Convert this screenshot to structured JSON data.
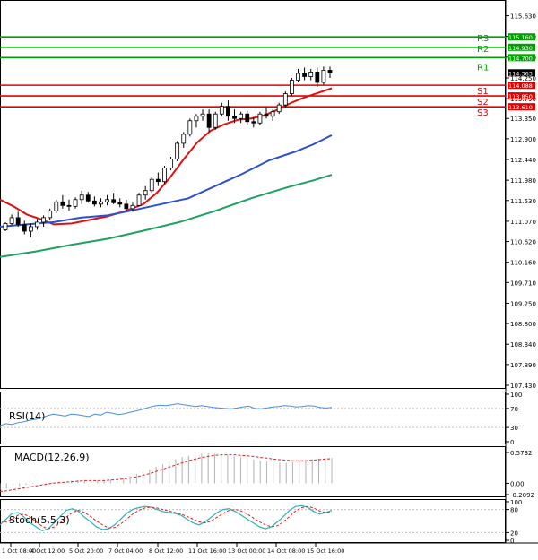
{
  "chart_data": {
    "type": "candlestick",
    "main_pane": {
      "y_ticks": [
        "115.630",
        "115.170",
        "114.710",
        "114.250",
        "113.790",
        "113.350",
        "112.900",
        "112.440",
        "111.980",
        "111.530",
        "111.070",
        "110.620",
        "110.160",
        "109.710",
        "109.250",
        "108.800",
        "108.340",
        "107.890",
        "107.430"
      ],
      "ylim": [
        107.43,
        115.86
      ],
      "levels": [
        {
          "name": "R3",
          "value": 115.16,
          "color": "#00a000"
        },
        {
          "name": "R2",
          "value": 114.93,
          "color": "#00a000"
        },
        {
          "name": "R1",
          "value": 114.7,
          "color": "#00a000"
        },
        {
          "name": "S1",
          "value": 114.088,
          "color": "#e00000"
        },
        {
          "name": "S2",
          "value": 113.85,
          "color": "#e00000"
        },
        {
          "name": "S3",
          "value": 113.61,
          "color": "#e00000"
        }
      ],
      "level_price_labels": [
        "115.160",
        "114.930",
        "114.700",
        "114.088",
        "113.850",
        "113.610"
      ],
      "current_price": "114.363",
      "moving_averages": [
        {
          "color": "#e01010",
          "points": [
            [
              0,
              111.55
            ],
            [
              15,
              111.4
            ],
            [
              30,
              111.22
            ],
            [
              45,
              111.12
            ],
            [
              60,
              111.0
            ],
            [
              80,
              111.02
            ],
            [
              100,
              111.1
            ],
            [
              120,
              111.18
            ],
            [
              140,
              111.3
            ],
            [
              160,
              111.45
            ],
            [
              175,
              111.7
            ],
            [
              190,
              112.05
            ],
            [
              205,
              112.45
            ],
            [
              220,
              112.82
            ],
            [
              235,
              113.08
            ],
            [
              250,
              113.22
            ],
            [
              265,
              113.32
            ],
            [
              280,
              113.35
            ],
            [
              295,
              113.42
            ],
            [
              310,
              113.55
            ],
            [
              325,
              113.7
            ],
            [
              340,
              113.82
            ],
            [
              355,
              113.92
            ],
            [
              370,
              114.02
            ]
          ]
        },
        {
          "color": "#2e4fd0",
          "points": [
            [
              0,
              110.95
            ],
            [
              30,
              111.0
            ],
            [
              60,
              111.05
            ],
            [
              90,
              111.15
            ],
            [
              120,
              111.2
            ],
            [
              150,
              111.32
            ],
            [
              180,
              111.45
            ],
            [
              210,
              111.58
            ],
            [
              240,
              111.85
            ],
            [
              270,
              112.12
            ],
            [
              300,
              112.42
            ],
            [
              330,
              112.62
            ],
            [
              350,
              112.78
            ],
            [
              370,
              112.98
            ]
          ]
        },
        {
          "color": "#20a060",
          "points": [
            [
              0,
              110.28
            ],
            [
              40,
              110.4
            ],
            [
              80,
              110.55
            ],
            [
              120,
              110.68
            ],
            [
              160,
              110.86
            ],
            [
              200,
              111.05
            ],
            [
              240,
              111.3
            ],
            [
              280,
              111.58
            ],
            [
              320,
              111.82
            ],
            [
              350,
              111.98
            ],
            [
              370,
              112.1
            ]
          ]
        }
      ],
      "candles": [
        [
          110.88,
          111.05,
          110.85,
          111.02
        ],
        [
          111.02,
          111.22,
          110.98,
          111.15
        ],
        [
          111.15,
          111.28,
          110.95,
          111.0
        ],
        [
          111.0,
          111.08,
          110.78,
          110.85
        ],
        [
          110.85,
          111.02,
          110.72,
          110.95
        ],
        [
          110.95,
          111.12,
          110.88,
          111.05
        ],
        [
          111.05,
          111.2,
          110.95,
          111.15
        ],
        [
          111.15,
          111.35,
          111.1,
          111.3
        ],
        [
          111.3,
          111.55,
          111.25,
          111.5
        ],
        [
          111.5,
          111.65,
          111.35,
          111.42
        ],
        [
          111.42,
          111.55,
          111.3,
          111.4
        ],
        [
          111.4,
          111.6,
          111.35,
          111.55
        ],
        [
          111.55,
          111.75,
          111.45,
          111.65
        ],
        [
          111.65,
          111.72,
          111.48,
          111.52
        ],
        [
          111.52,
          111.62,
          111.4,
          111.45
        ],
        [
          111.45,
          111.58,
          111.38,
          111.5
        ],
        [
          111.5,
          111.65,
          111.42,
          111.55
        ],
        [
          111.55,
          111.7,
          111.45,
          111.48
        ],
        [
          111.48,
          111.58,
          111.38,
          111.45
        ],
        [
          111.45,
          111.55,
          111.3,
          111.35
        ],
        [
          111.35,
          111.48,
          111.28,
          111.42
        ],
        [
          111.42,
          111.7,
          111.4,
          111.65
        ],
        [
          111.65,
          111.85,
          111.55,
          111.75
        ],
        [
          111.75,
          112.05,
          111.7,
          112.0
        ],
        [
          112.0,
          112.15,
          111.85,
          111.95
        ],
        [
          111.95,
          112.3,
          111.9,
          112.25
        ],
        [
          112.25,
          112.5,
          112.2,
          112.45
        ],
        [
          112.45,
          112.85,
          112.4,
          112.8
        ],
        [
          112.8,
          113.05,
          112.7,
          113.0
        ],
        [
          113.0,
          113.35,
          112.95,
          113.3
        ],
        [
          113.3,
          113.45,
          113.15,
          113.4
        ],
        [
          113.4,
          113.55,
          113.3,
          113.45
        ],
        [
          113.45,
          113.55,
          113.05,
          113.15
        ],
        [
          113.15,
          113.5,
          113.1,
          113.45
        ],
        [
          113.45,
          113.7,
          113.4,
          113.62
        ],
        [
          113.62,
          113.75,
          113.3,
          113.4
        ],
        [
          113.4,
          113.55,
          113.25,
          113.35
        ],
        [
          113.35,
          113.5,
          113.25,
          113.45
        ],
        [
          113.45,
          113.52,
          113.2,
          113.28
        ],
        [
          113.28,
          113.38,
          113.15,
          113.25
        ],
        [
          113.25,
          113.5,
          113.2,
          113.45
        ],
        [
          113.45,
          113.6,
          113.35,
          113.4
        ],
        [
          113.4,
          113.55,
          113.3,
          113.5
        ],
        [
          113.5,
          113.7,
          113.45,
          113.65
        ],
        [
          113.65,
          113.95,
          113.6,
          113.9
        ],
        [
          113.9,
          114.25,
          113.85,
          114.2
        ],
        [
          114.2,
          114.45,
          114.15,
          114.35
        ],
        [
          114.35,
          114.48,
          114.2,
          114.28
        ],
        [
          114.28,
          114.45,
          114.2,
          114.38
        ],
        [
          114.38,
          114.48,
          114.05,
          114.15
        ],
        [
          114.15,
          114.5,
          114.1,
          114.42
        ],
        [
          114.42,
          114.5,
          114.25,
          114.36
        ]
      ]
    },
    "rsi": {
      "label": "RSI(14)",
      "y_ticks": [
        "100",
        "70",
        "30",
        "0"
      ],
      "ylim": [
        0,
        100
      ],
      "color": "#4a8fe0",
      "values": [
        34,
        38,
        36,
        40,
        42,
        45,
        47,
        50,
        55,
        58,
        56,
        54,
        58,
        57,
        55,
        53,
        58,
        56,
        62,
        60,
        57,
        59,
        62,
        65,
        68,
        72,
        75,
        77,
        76,
        78,
        80,
        78,
        76,
        74,
        76,
        74,
        72,
        71,
        70,
        69,
        71,
        73,
        75,
        70,
        69,
        71,
        73,
        74,
        76,
        75,
        73,
        74,
        76,
        75,
        72,
        71,
        72
      ]
    },
    "macd": {
      "label": "MACD(12,26,9)",
      "y_ticks": [
        "0.5732",
        "0.00",
        "-0.2092"
      ],
      "ylim": [
        -0.2092,
        0.64
      ],
      "histogram_color": "#b0b0b0",
      "signal_color": "#e02020",
      "histogram": [
        -0.12,
        -0.1,
        -0.08,
        -0.05,
        -0.03,
        -0.01,
        0.0,
        0.01,
        0.02,
        0.03,
        0.04,
        0.05,
        0.06,
        0.05,
        0.04,
        0.05,
        0.06,
        0.07,
        0.08,
        0.1,
        0.13,
        0.17,
        0.21,
        0.26,
        0.31,
        0.36,
        0.41,
        0.45,
        0.49,
        0.51,
        0.53,
        0.55,
        0.56,
        0.55,
        0.54,
        0.52,
        0.5,
        0.48,
        0.46,
        0.44,
        0.42,
        0.4,
        0.39,
        0.38,
        0.38,
        0.39,
        0.41,
        0.43,
        0.45,
        0.46,
        0.47,
        0.47
      ],
      "signal": [
        -0.15,
        -0.14,
        -0.12,
        -0.1,
        -0.08,
        -0.06,
        -0.04,
        -0.02,
        0.0,
        0.01,
        0.02,
        0.03,
        0.04,
        0.05,
        0.05,
        0.05,
        0.05,
        0.06,
        0.07,
        0.08,
        0.1,
        0.12,
        0.15,
        0.18,
        0.22,
        0.26,
        0.3,
        0.34,
        0.38,
        0.42,
        0.45,
        0.48,
        0.5,
        0.52,
        0.53,
        0.53,
        0.53,
        0.52,
        0.51,
        0.5,
        0.48,
        0.47,
        0.45,
        0.44,
        0.43,
        0.42,
        0.42,
        0.42,
        0.43,
        0.44,
        0.45,
        0.46
      ]
    },
    "stoch": {
      "label": "Stoch(5,5,3)",
      "y_ticks": [
        "100",
        "80",
        "20",
        "0"
      ],
      "ylim": [
        0,
        100
      ],
      "main_color": "#2bb3b3",
      "signal_color": "#e02020",
      "main": [
        40,
        55,
        70,
        72,
        60,
        45,
        35,
        25,
        30,
        45,
        62,
        78,
        82,
        75,
        60,
        48,
        35,
        28,
        30,
        40,
        55,
        70,
        80,
        85,
        88,
        86,
        80,
        75,
        72,
        70,
        65,
        55,
        45,
        40,
        48,
        60,
        72,
        80,
        82,
        75,
        65,
        55,
        45,
        35,
        30,
        35,
        48,
        62,
        78,
        88,
        90,
        86,
        75,
        68,
        72,
        78
      ],
      "signal": [
        50,
        48,
        55,
        65,
        68,
        60,
        48,
        36,
        30,
        35,
        45,
        60,
        72,
        78,
        72,
        62,
        50,
        40,
        32,
        33,
        42,
        55,
        68,
        78,
        84,
        86,
        84,
        80,
        76,
        72,
        68,
        62,
        55,
        48,
        45,
        50,
        60,
        70,
        78,
        80,
        76,
        68,
        58,
        48,
        40,
        35,
        38,
        48,
        62,
        76,
        85,
        88,
        84,
        76,
        72,
        74
      ]
    },
    "x_labels": [
      "1 Oct 08:00",
      "4 Oct 12:00",
      "5 Oct 20:00",
      "7 Oct 04:00",
      "8 Oct 12:00",
      "11 Oct 16:00",
      "13 Oct 00:00",
      "14 Oct 08:00",
      "15 Oct 16:00"
    ]
  }
}
